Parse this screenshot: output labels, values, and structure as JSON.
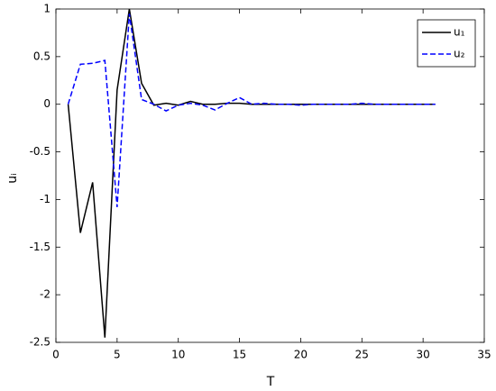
{
  "chart_data": {
    "type": "line",
    "x_label": "T",
    "y_label": "uᵢ",
    "x": [
      1,
      2,
      3,
      4,
      5,
      6,
      7,
      8,
      9,
      10,
      11,
      12,
      13,
      14,
      15,
      16,
      17,
      18,
      19,
      20,
      21,
      22,
      23,
      24,
      25,
      26,
      27,
      28,
      29,
      30,
      31
    ],
    "series": [
      {
        "name": "u₁",
        "color": "#000000",
        "dash": "solid",
        "values": [
          0,
          -1.35,
          -0.82,
          -2.45,
          0.15,
          1.0,
          0.22,
          -0.01,
          0.01,
          -0.01,
          0.03,
          0,
          0,
          0.01,
          0.01,
          0,
          0,
          0,
          0,
          0,
          0,
          0,
          0,
          0,
          0,
          0,
          0,
          0,
          0,
          0,
          0
        ]
      },
      {
        "name": "u₂",
        "color": "#0000ff",
        "dash": "dashed",
        "values": [
          0,
          0.42,
          0.43,
          0.46,
          -1.08,
          0.95,
          0.05,
          0,
          -0.07,
          -0.01,
          0.01,
          -0.01,
          -0.06,
          0.01,
          0.07,
          0,
          0.01,
          0,
          0,
          -0.01,
          0,
          0,
          0,
          0,
          0.01,
          0,
          0,
          0,
          0,
          0,
          0
        ]
      }
    ],
    "xlim": [
      0,
      35
    ],
    "xticks": [
      0,
      5,
      10,
      15,
      20,
      25,
      30,
      35
    ],
    "ylim": [
      -2.5,
      1
    ],
    "yticks": [
      -2.5,
      -2,
      -1.5,
      -1,
      -0.5,
      0,
      0.5,
      1
    ],
    "legend": "top-right"
  }
}
